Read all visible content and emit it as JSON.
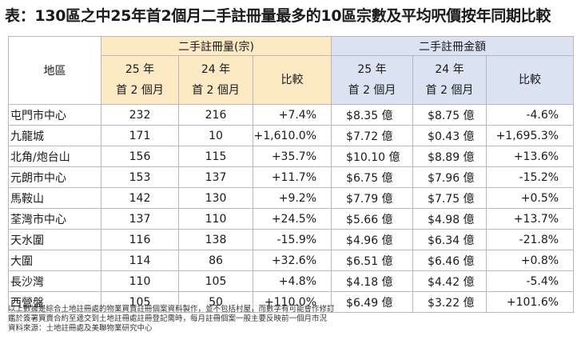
{
  "title": "表：130區之中25年首2個月二手註冊量最多的10區宗數及平均呎價按年同期比較",
  "table": {
    "region_header": "地區",
    "volume_group_header": "二手註冊量(宗)",
    "amount_group_header": "二手註冊金額",
    "volume_col_headers": [
      {
        "line1": "25 年",
        "line2": "首 2 個月"
      },
      {
        "line1": "24 年",
        "line2": "首 2 個月"
      },
      {
        "line1": "比較",
        "line2": ""
      }
    ],
    "amount_col_headers": [
      {
        "line1": "25 年",
        "line2": "首 2 個月"
      },
      {
        "line1": "24 年",
        "line2": "首 2 個月"
      },
      {
        "line1": "比較",
        "line2": ""
      }
    ],
    "rows": [
      {
        "region": "屯門市中心",
        "vol25": "232",
        "vol24": "216",
        "vol_change": "+7.4%",
        "amt25": "$8.35 億",
        "amt24": "$8.75 億",
        "amt_change": "-4.6%"
      },
      {
        "region": "九龍城",
        "vol25": "171",
        "vol24": "10",
        "vol_change": "+1,610.0%",
        "amt25": "$7.72 億",
        "amt24": "$0.43 億",
        "amt_change": "+1,695.3%"
      },
      {
        "region": "北角/炮台山",
        "vol25": "156",
        "vol24": "115",
        "vol_change": "+35.7%",
        "amt25": "$10.10 億",
        "amt24": "$8.89 億",
        "amt_change": "+13.6%"
      },
      {
        "region": "元朗市中心",
        "vol25": "153",
        "vol24": "137",
        "vol_change": "+11.7%",
        "amt25": "$6.75 億",
        "amt24": "$7.96 億",
        "amt_change": "-15.2%"
      },
      {
        "region": "馬鞍山",
        "vol25": "142",
        "vol24": "130",
        "vol_change": "+9.2%",
        "amt25": "$7.79 億",
        "amt24": "$7.75 億",
        "amt_change": "+0.5%"
      },
      {
        "region": "荃灣市中心",
        "vol25": "137",
        "vol24": "110",
        "vol_change": "+24.5%",
        "amt25": "$5.66 億",
        "amt24": "$4.98 億",
        "amt_change": "+13.7%"
      },
      {
        "region": "天水圍",
        "vol25": "116",
        "vol24": "138",
        "vol_change": "-15.9%",
        "amt25": "$4.96 億",
        "amt24": "$6.34 億",
        "amt_change": "-21.8%"
      },
      {
        "region": "大圍",
        "vol25": "114",
        "vol24": "86",
        "vol_change": "+32.6%",
        "amt25": "$6.51 億",
        "amt24": "$6.46 億",
        "amt_change": "+0.8%"
      },
      {
        "region": "長沙灣",
        "vol25": "110",
        "vol24": "105",
        "vol_change": "+4.8%",
        "amt25": "$4.18 億",
        "amt24": "$4.42 億",
        "amt_change": "-5.4%"
      },
      {
        "region": "西營盤",
        "vol25": "105",
        "vol24": "50",
        "vol_change": "+110.0%",
        "amt25": "$6.49 億",
        "amt24": "$3.22 億",
        "amt_change": "+101.6%"
      }
    ]
  },
  "notes": [
    "以上數據是綜合土地註冊處的物業買賣註冊個案資料製作，並不包括村屋，而數字有可能會作修訂",
    "鑑於簽署買賣合約至遞交到土地註冊處註冊登記需時，每月註冊個案一般主要反映前一個月市況",
    "資料來源：土地註冊處及美聯物業研究中心"
  ],
  "colors": {
    "volume_header_bg": "#fde9c4",
    "amount_header_bg": "#dbe3f3",
    "grid_line": "#b8b8b8"
  }
}
